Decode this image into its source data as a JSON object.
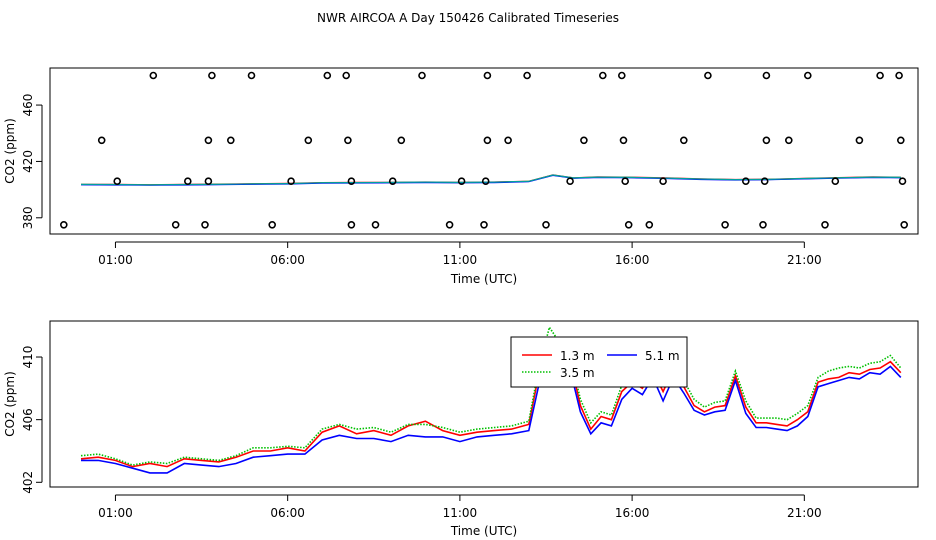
{
  "title": "NWR AIRCOA A  Day 150426  Calibrated Timeseries",
  "chart_data": [
    {
      "type": "scatter",
      "xlabel": "Time (UTC)",
      "ylabel": "CO2 (ppm)",
      "xlim": [
        -0.9,
        24.3
      ],
      "ylim": [
        368.5,
        486.3
      ],
      "xticks": [
        1,
        6,
        11,
        16,
        21
      ],
      "xticklabels": [
        "01:00",
        "06:00",
        "11:00",
        "16:00",
        "21:00"
      ],
      "yticks": [
        380,
        420,
        460
      ],
      "yticklabels": [
        "380",
        "420",
        "460"
      ],
      "scatter_marker": "open circle",
      "scatter_points": [
        [
          2.1,
          481
        ],
        [
          3.8,
          481
        ],
        [
          4.95,
          481
        ],
        [
          7.15,
          481
        ],
        [
          7.7,
          481
        ],
        [
          9.9,
          481
        ],
        [
          11.8,
          481
        ],
        [
          12.95,
          481
        ],
        [
          15.15,
          481
        ],
        [
          15.7,
          481
        ],
        [
          18.2,
          481
        ],
        [
          19.9,
          481
        ],
        [
          21.1,
          481
        ],
        [
          23.2,
          481
        ],
        [
          23.75,
          481
        ],
        [
          0.6,
          435
        ],
        [
          3.7,
          435
        ],
        [
          4.35,
          435
        ],
        [
          6.6,
          435
        ],
        [
          7.75,
          435
        ],
        [
          9.3,
          435
        ],
        [
          11.8,
          435
        ],
        [
          12.4,
          435
        ],
        [
          14.6,
          435
        ],
        [
          15.75,
          435
        ],
        [
          17.5,
          435
        ],
        [
          19.9,
          435
        ],
        [
          20.55,
          435
        ],
        [
          22.6,
          435
        ],
        [
          23.8,
          435
        ],
        [
          1.05,
          406
        ],
        [
          3.1,
          406
        ],
        [
          3.7,
          406
        ],
        [
          6.1,
          406
        ],
        [
          7.85,
          406
        ],
        [
          9.05,
          406
        ],
        [
          11.05,
          406
        ],
        [
          11.75,
          406
        ],
        [
          14.2,
          406
        ],
        [
          15.8,
          406
        ],
        [
          16.9,
          406
        ],
        [
          19.3,
          406
        ],
        [
          19.85,
          406
        ],
        [
          21.9,
          406
        ],
        [
          23.85,
          406
        ],
        [
          -0.5,
          375
        ],
        [
          2.75,
          375
        ],
        [
          3.6,
          375
        ],
        [
          5.55,
          375
        ],
        [
          7.85,
          375
        ],
        [
          8.55,
          375
        ],
        [
          10.7,
          375
        ],
        [
          11.7,
          375
        ],
        [
          13.5,
          375
        ],
        [
          15.9,
          375
        ],
        [
          16.5,
          375
        ],
        [
          18.7,
          375
        ],
        [
          19.8,
          375
        ],
        [
          21.6,
          375
        ],
        [
          23.9,
          375
        ]
      ],
      "lines": [
        {
          "name": "1.3 m",
          "color": "#ff0000"
        },
        {
          "name": "3.5 m",
          "color": "#00c000"
        },
        {
          "name": "5.1 m",
          "color": "#0000ff"
        }
      ],
      "line_points": [
        [
          0,
          403.6
        ],
        [
          1,
          403.5
        ],
        [
          2,
          403.3
        ],
        [
          3,
          403.5
        ],
        [
          4,
          403.7
        ],
        [
          5,
          404.0
        ],
        [
          6,
          404.2
        ],
        [
          7,
          404.8
        ],
        [
          8,
          404.9
        ],
        [
          9,
          405.0
        ],
        [
          10,
          405.2
        ],
        [
          11,
          405.0
        ],
        [
          12,
          405.2
        ],
        [
          13,
          405.8
        ],
        [
          13.7,
          410.3
        ],
        [
          14.3,
          408.2
        ],
        [
          15,
          408.8
        ],
        [
          16,
          408.6
        ],
        [
          17,
          408.1
        ],
        [
          18,
          407.4
        ],
        [
          19,
          407.0
        ],
        [
          20,
          407.2
        ],
        [
          21,
          407.8
        ],
        [
          22,
          408.3
        ],
        [
          23,
          408.8
        ],
        [
          23.8,
          408.6
        ]
      ],
      "line_colors": [
        "#ff0000",
        "#00c000",
        "#0000ff",
        "#00a0a0"
      ]
    },
    {
      "type": "line",
      "xlabel": "Time (UTC)",
      "ylabel": "CO2 (ppm)",
      "xlim": [
        -0.9,
        24.3
      ],
      "ylim": [
        401.7,
        412.3
      ],
      "xticks": [
        1,
        6,
        11,
        16,
        21
      ],
      "xticklabels": [
        "01:00",
        "06:00",
        "11:00",
        "16:00",
        "21:00"
      ],
      "yticks": [
        402,
        406,
        410
      ],
      "yticklabels": [
        "402",
        "406",
        "410"
      ],
      "legend_position": "top-center",
      "x": [
        0,
        0.5,
        1,
        1.5,
        2,
        2.5,
        3,
        3.5,
        4,
        4.5,
        5,
        5.5,
        6,
        6.5,
        7,
        7.5,
        8,
        8.5,
        9,
        9.5,
        10,
        10.5,
        11,
        11.5,
        12,
        12.5,
        13,
        13.3,
        13.6,
        13.9,
        14.2,
        14.5,
        14.8,
        15.1,
        15.4,
        15.7,
        16,
        16.3,
        16.6,
        16.9,
        17.2,
        17.5,
        17.8,
        18.1,
        18.4,
        18.7,
        19,
        19.3,
        19.6,
        19.9,
        20.2,
        20.5,
        20.8,
        21.1,
        21.4,
        21.7,
        22,
        22.3,
        22.6,
        22.9,
        23.2,
        23.5,
        23.8
      ],
      "series": [
        {
          "name": "1.3 m",
          "color": "#ff0000",
          "style": "solid",
          "values": [
            403.5,
            403.6,
            403.4,
            403.0,
            403.2,
            403.0,
            403.5,
            403.4,
            403.3,
            403.6,
            404.0,
            404.0,
            404.2,
            404.0,
            405.2,
            405.6,
            405.1,
            405.3,
            405.0,
            405.6,
            405.9,
            405.3,
            405.0,
            405.2,
            405.3,
            405.4,
            405.7,
            409.0,
            411.2,
            410.4,
            409.8,
            406.9,
            405.4,
            406.2,
            406.0,
            407.8,
            408.4,
            408.0,
            409.1,
            407.8,
            409.2,
            408.1,
            406.9,
            406.5,
            406.8,
            406.9,
            408.8,
            406.8,
            405.8,
            405.8,
            405.7,
            405.6,
            406.0,
            406.5,
            408.4,
            408.6,
            408.7,
            409.0,
            408.9,
            409.2,
            409.3,
            409.7,
            409.0
          ]
        },
        {
          "name": "3.5 m",
          "color": "#00c000",
          "style": "dotted",
          "values": [
            403.7,
            403.8,
            403.5,
            403.1,
            403.3,
            403.2,
            403.6,
            403.5,
            403.4,
            403.7,
            404.2,
            404.2,
            404.3,
            404.2,
            405.4,
            405.7,
            405.4,
            405.5,
            405.2,
            405.7,
            405.7,
            405.5,
            405.2,
            405.4,
            405.5,
            405.6,
            405.9,
            409.4,
            411.9,
            410.9,
            410.1,
            407.3,
            405.8,
            406.5,
            406.3,
            408.2,
            408.9,
            408.2,
            409.6,
            408.2,
            409.7,
            408.5,
            407.3,
            406.8,
            407.1,
            407.2,
            409.1,
            407.2,
            406.1,
            406.1,
            406.1,
            406.0,
            406.4,
            406.9,
            408.7,
            409.1,
            409.3,
            409.4,
            409.3,
            409.6,
            409.7,
            410.1,
            409.3
          ]
        },
        {
          "name": "5.1 m",
          "color": "#0000ff",
          "style": "solid",
          "values": [
            403.4,
            403.4,
            403.2,
            402.9,
            402.6,
            402.6,
            403.2,
            403.1,
            403.0,
            403.2,
            403.6,
            403.7,
            403.8,
            403.8,
            404.7,
            405.0,
            404.8,
            404.8,
            404.6,
            405.0,
            404.9,
            404.9,
            404.6,
            404.9,
            405.0,
            405.1,
            405.3,
            408.3,
            410.5,
            409.7,
            409.2,
            406.5,
            405.1,
            405.8,
            405.6,
            407.3,
            408.0,
            407.6,
            408.7,
            407.2,
            408.7,
            407.7,
            406.6,
            406.3,
            406.5,
            406.6,
            408.5,
            406.4,
            405.5,
            405.5,
            405.4,
            405.3,
            405.6,
            406.2,
            408.1,
            408.3,
            408.5,
            408.7,
            408.6,
            409.0,
            408.9,
            409.4,
            408.7
          ]
        }
      ]
    }
  ]
}
